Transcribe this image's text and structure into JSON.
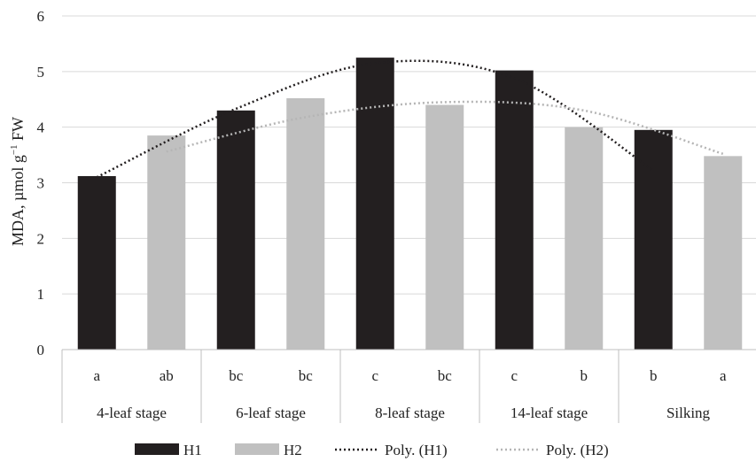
{
  "chart_data": {
    "type": "bar",
    "ylabel": "MDA, µmol g−1 FW",
    "ylabel_main": "MDA, µmol g",
    "ylabel_sup": "−1",
    "ylabel_tail": " FW",
    "ylim": [
      0,
      6
    ],
    "yticks": [
      "0",
      "1",
      "2",
      "3",
      "4",
      "5",
      "6"
    ],
    "grid": true,
    "legend_position": "bottom",
    "groups": [
      "4-leaf stage",
      "6-leaf stage",
      "8-leaf stage",
      "14-leaf stage",
      "Silking"
    ],
    "series": [
      {
        "name": "H1",
        "color": "#231f20",
        "values": [
          3.12,
          4.3,
          5.25,
          5.02,
          3.95
        ],
        "letters": [
          "a",
          "bc",
          "c",
          "c",
          "b"
        ]
      },
      {
        "name": "H2",
        "color": "#c0c0c0",
        "values": [
          3.85,
          4.52,
          4.4,
          4.0,
          3.48
        ],
        "letters": [
          "ab",
          "bc",
          "bc",
          "b",
          "a"
        ]
      }
    ],
    "trendlines": [
      {
        "name": "Poly. (H1)",
        "series": "H1",
        "order": 2,
        "color": "#231f20",
        "values": [
          3.1,
          4.33,
          5.15,
          4.88,
          3.22
        ]
      },
      {
        "name": "Poly. (H2)",
        "series": "H2",
        "order": 2,
        "color": "#b5b5b5",
        "values": [
          3.56,
          4.18,
          4.45,
          4.3,
          3.52
        ]
      }
    ]
  }
}
